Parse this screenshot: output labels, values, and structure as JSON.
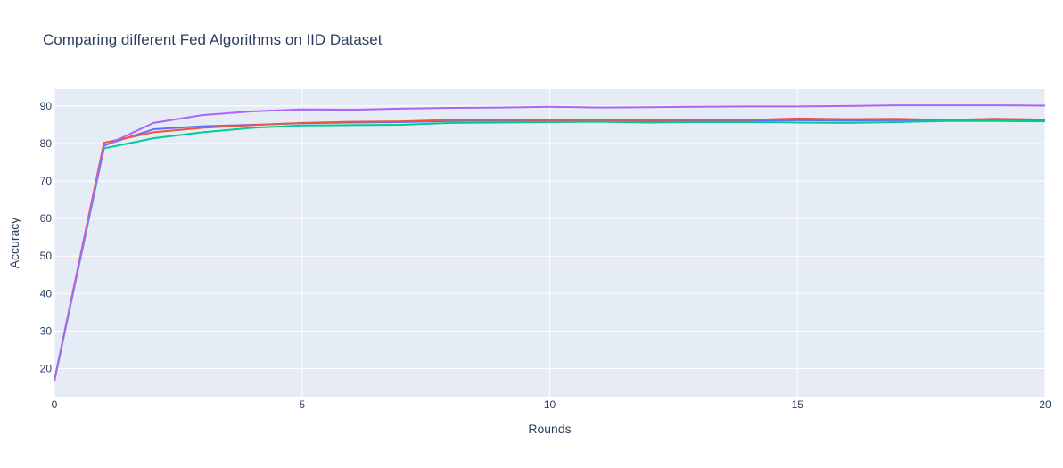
{
  "chart_data": {
    "type": "line",
    "title": "Comparing different Fed Algorithms on IID Dataset",
    "xlabel": "Rounds",
    "ylabel": "Accuracy",
    "xlim": [
      0,
      20
    ],
    "ylim": [
      12.5,
      94.5
    ],
    "xticks": [
      0,
      5,
      10,
      15,
      20
    ],
    "yticks": [
      20,
      30,
      40,
      50,
      60,
      70,
      80,
      90
    ],
    "grid": true,
    "legend": "none",
    "plot_bgcolor": "#e5ecf6",
    "x": [
      0,
      1,
      2,
      3,
      4,
      5,
      6,
      7,
      8,
      9,
      10,
      11,
      12,
      13,
      14,
      15,
      16,
      17,
      18,
      19,
      20
    ],
    "series": [
      {
        "color": "#636efa",
        "values": [
          16.8,
          79.5,
          83.8,
          84.6,
          85.0,
          85.4,
          85.6,
          85.7,
          86.0,
          86.1,
          86.1,
          86.0,
          86.0,
          86.1,
          86.1,
          86.2,
          86.1,
          86.2,
          86.2,
          86.2,
          86.3
        ]
      },
      {
        "color": "#ef553b",
        "values": [
          16.8,
          80.2,
          83.0,
          84.2,
          84.9,
          85.5,
          85.8,
          85.9,
          86.3,
          86.3,
          86.2,
          86.2,
          86.2,
          86.3,
          86.3,
          86.7,
          86.5,
          86.6,
          86.3,
          86.6,
          86.4
        ]
      },
      {
        "color": "#00cc96",
        "values": [
          16.8,
          78.7,
          81.4,
          83.0,
          84.2,
          84.8,
          84.9,
          85.0,
          85.5,
          85.6,
          85.7,
          85.8,
          85.6,
          85.7,
          85.7,
          85.6,
          85.5,
          85.7,
          86.0,
          86.0,
          85.9
        ]
      },
      {
        "color": "#ab63fa",
        "values": [
          16.8,
          79.3,
          85.5,
          87.6,
          88.6,
          89.1,
          89.0,
          89.3,
          89.5,
          89.6,
          89.8,
          89.6,
          89.7,
          89.8,
          89.9,
          89.9,
          90.0,
          90.2,
          90.2,
          90.2,
          90.1
        ]
      }
    ]
  }
}
